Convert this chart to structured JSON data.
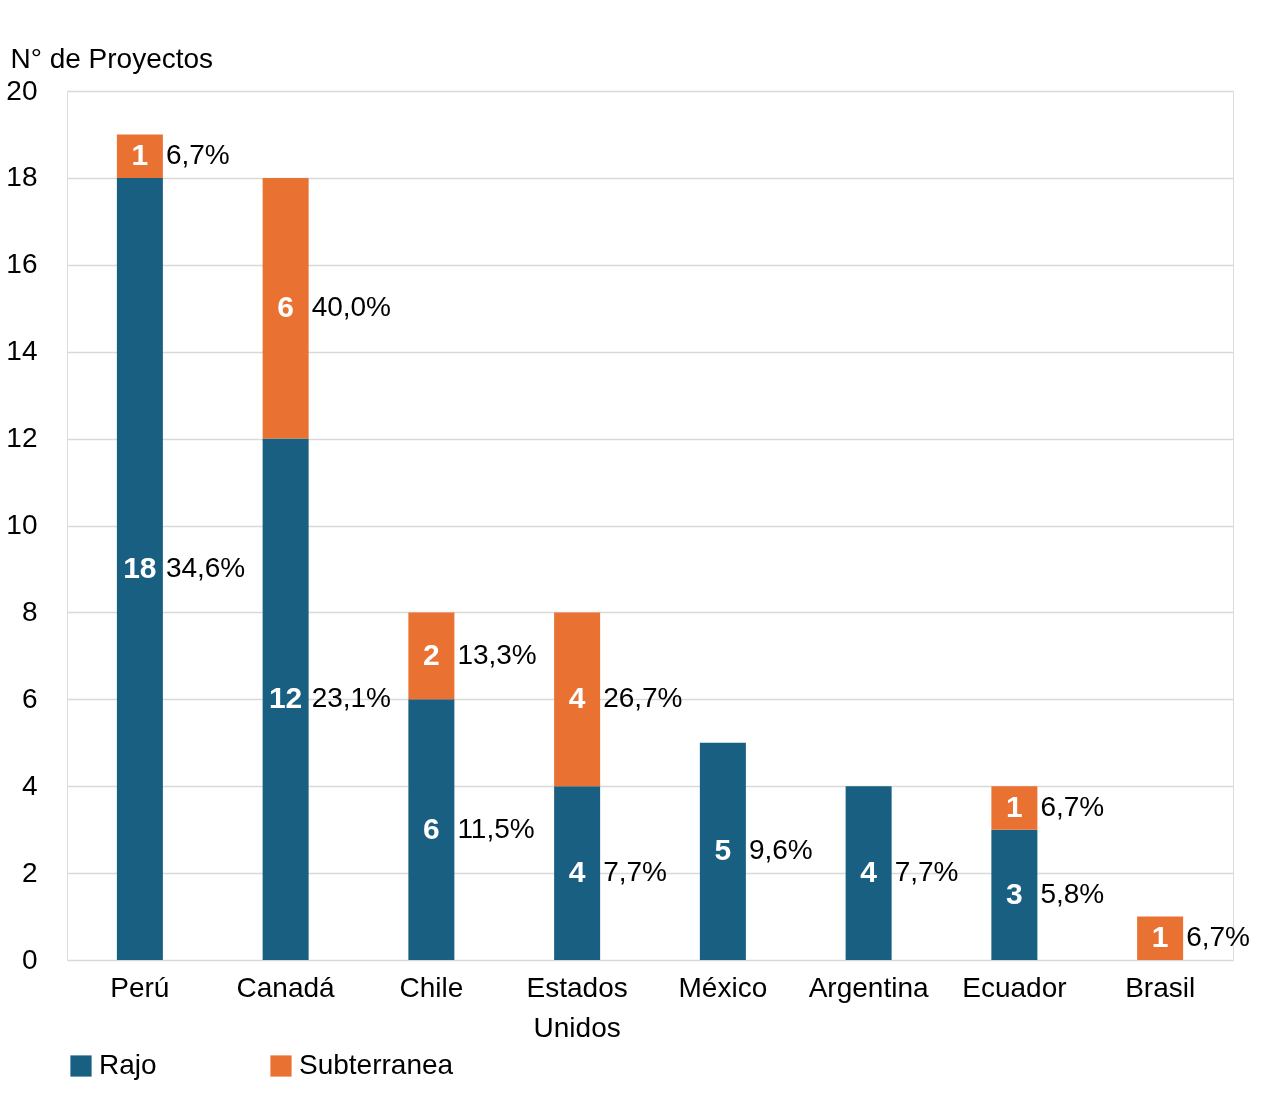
{
  "chart_data": {
    "type": "bar",
    "stacked": true,
    "ylabel": "N° de Proyectos",
    "categories": [
      "Perú",
      "Canadá",
      "Chile",
      "Estados Unidos",
      "México",
      "Argentina",
      "Ecuador",
      "Brasil"
    ],
    "series": [
      {
        "name": "Rajo",
        "color": "#195f82",
        "values": [
          18,
          12,
          6,
          4,
          5,
          4,
          3,
          null
        ]
      },
      {
        "name": "Subterranea",
        "color": "#e97132",
        "values": [
          1,
          6,
          2,
          4,
          null,
          null,
          1,
          1
        ]
      }
    ],
    "annotations": [
      "34,6%",
      "23,1%",
      "11,5%",
      "7,7%",
      "9,6%",
      "7,7%",
      "5,8%",
      "6,7%",
      "40,0%",
      "13,3%",
      "26,7%",
      "6,7%",
      "6,7%"
    ],
    "ylim": [
      0,
      20
    ],
    "yticks": [
      0,
      2,
      4,
      6,
      8,
      10,
      12,
      14,
      16,
      18,
      20
    ],
    "grid": "y",
    "legend": "bottom",
    "data_labels": true
  }
}
